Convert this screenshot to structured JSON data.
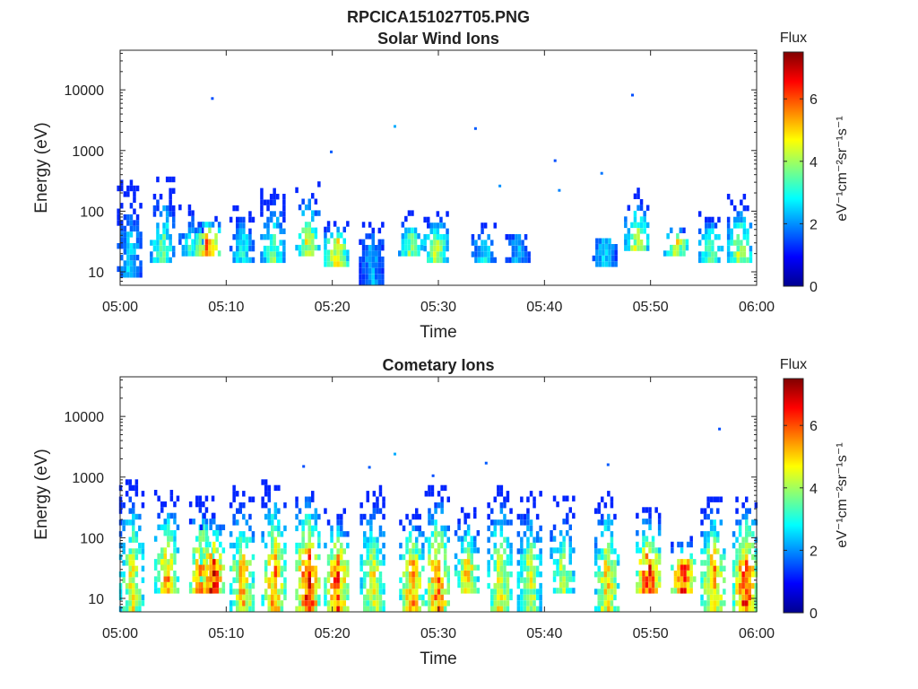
{
  "figure": {
    "title": "RPCICA151027T05.PNG"
  },
  "chart_data": [
    {
      "type": "heatmap",
      "title": "Solar Wind Ions",
      "xlabel": "Time",
      "ylabel": "Energy (eV)",
      "y_scale": "log",
      "ylim": [
        6,
        45000
      ],
      "xlim": [
        "05:00",
        "06:00"
      ],
      "x_ticks": [
        "05:00",
        "05:10",
        "05:20",
        "05:30",
        "05:40",
        "05:50",
        "06:00"
      ],
      "y_ticks": [
        {
          "value": 10,
          "label": "10"
        },
        {
          "value": 100,
          "label": "100"
        },
        {
          "value": 1000,
          "label": "1000"
        },
        {
          "value": 10000,
          "label": "10000"
        }
      ],
      "colorbar": {
        "label": "Flux",
        "units": "eV⁻¹cm⁻²sr⁻¹s⁻¹",
        "range": [
          0,
          7.5
        ],
        "ticks": [
          "0",
          "2",
          "4",
          "6"
        ],
        "colormap": "jet"
      },
      "bursts": [
        {
          "t": 0.8,
          "lo": 8,
          "hi": 300,
          "peak": 2.8
        },
        {
          "t": 3.9,
          "lo": 14,
          "hi": 300,
          "peak": 4.0
        },
        {
          "t": 6.6,
          "lo": 18,
          "hi": 120,
          "peak": 3.5
        },
        {
          "t": 8.2,
          "lo": 18,
          "hi": 80,
          "peak": 6.4
        },
        {
          "t": 11.4,
          "lo": 14,
          "hi": 110,
          "peak": 3.2
        },
        {
          "t": 14.3,
          "lo": 14,
          "hi": 230,
          "peak": 4.0
        },
        {
          "t": 17.6,
          "lo": 18,
          "hi": 250,
          "peak": 5.0
        },
        {
          "t": 20.3,
          "lo": 12,
          "hi": 60,
          "peak": 5.0
        },
        {
          "t": 23.6,
          "lo": 6,
          "hi": 55,
          "peak": 2.5
        },
        {
          "t": 27.3,
          "lo": 18,
          "hi": 90,
          "peak": 4.2
        },
        {
          "t": 29.7,
          "lo": 14,
          "hi": 90,
          "peak": 4.5
        },
        {
          "t": 34.2,
          "lo": 14,
          "hi": 60,
          "peak": 3.0
        },
        {
          "t": 37.4,
          "lo": 14,
          "hi": 35,
          "peak": 2.6
        },
        {
          "t": 45.6,
          "lo": 12,
          "hi": 35,
          "peak": 2.8
        },
        {
          "t": 48.6,
          "lo": 22,
          "hi": 200,
          "peak": 4.8
        },
        {
          "t": 52.3,
          "lo": 18,
          "hi": 45,
          "peak": 5.0
        },
        {
          "t": 55.6,
          "lo": 14,
          "hi": 90,
          "peak": 4.0
        },
        {
          "t": 58.3,
          "lo": 14,
          "hi": 160,
          "peak": 4.6
        }
      ],
      "isolated_points": [
        {
          "t": 8.7,
          "e": 7200,
          "flux": 1.5
        },
        {
          "t": 48.3,
          "e": 8200,
          "flux": 1.5
        },
        {
          "t": 25.9,
          "e": 2500,
          "flux": 2.2
        },
        {
          "t": 33.5,
          "e": 2300,
          "flux": 1.6
        },
        {
          "t": 19.9,
          "e": 950,
          "flux": 1.6
        },
        {
          "t": 41.0,
          "e": 680,
          "flux": 1.5
        },
        {
          "t": 45.4,
          "e": 420,
          "flux": 1.8
        },
        {
          "t": 41.4,
          "e": 220,
          "flux": 1.9
        },
        {
          "t": 35.8,
          "e": 260,
          "flux": 2.0
        }
      ]
    },
    {
      "type": "heatmap",
      "title": "Cometary Ions",
      "xlabel": "Time",
      "ylabel": "Energy (eV)",
      "y_scale": "log",
      "ylim": [
        6,
        45000
      ],
      "xlim": [
        "05:00",
        "06:00"
      ],
      "x_ticks": [
        "05:00",
        "05:10",
        "05:20",
        "05:30",
        "05:40",
        "05:50",
        "06:00"
      ],
      "y_ticks": [
        {
          "value": 10,
          "label": "10"
        },
        {
          "value": 100,
          "label": "100"
        },
        {
          "value": 1000,
          "label": "1000"
        },
        {
          "value": 10000,
          "label": "10000"
        }
      ],
      "colorbar": {
        "label": "Flux",
        "units": "eV⁻¹cm⁻²sr⁻¹s⁻¹",
        "range": [
          0,
          7.5
        ],
        "ticks": [
          "0",
          "2",
          "4",
          "6"
        ],
        "colormap": "jet"
      },
      "bursts": [
        {
          "t": 1.0,
          "lo": 6,
          "hi": 800,
          "peak": 5.0
        },
        {
          "t": 4.3,
          "lo": 12,
          "hi": 550,
          "peak": 5.8
        },
        {
          "t": 7.6,
          "lo": 12,
          "hi": 400,
          "peak": 6.5
        },
        {
          "t": 8.6,
          "lo": 12,
          "hi": 250,
          "peak": 7.2
        },
        {
          "t": 11.4,
          "lo": 6,
          "hi": 600,
          "peak": 5.6
        },
        {
          "t": 14.4,
          "lo": 6,
          "hi": 900,
          "peak": 6.0
        },
        {
          "t": 17.6,
          "lo": 6,
          "hi": 700,
          "peak": 7.0
        },
        {
          "t": 20.3,
          "lo": 6,
          "hi": 250,
          "peak": 6.6
        },
        {
          "t": 23.7,
          "lo": 6,
          "hi": 650,
          "peak": 5.0
        },
        {
          "t": 27.4,
          "lo": 6,
          "hi": 250,
          "peak": 6.0
        },
        {
          "t": 29.8,
          "lo": 6,
          "hi": 650,
          "peak": 6.2
        },
        {
          "t": 32.6,
          "lo": 12,
          "hi": 300,
          "peak": 5.4
        },
        {
          "t": 35.7,
          "lo": 6,
          "hi": 650,
          "peak": 5.2
        },
        {
          "t": 38.5,
          "lo": 6,
          "hi": 500,
          "peak": 4.8
        },
        {
          "t": 41.6,
          "lo": 12,
          "hi": 400,
          "peak": 4.6
        },
        {
          "t": 45.8,
          "lo": 6,
          "hi": 500,
          "peak": 5.4
        },
        {
          "t": 49.7,
          "lo": 12,
          "hi": 300,
          "peak": 7.0
        },
        {
          "t": 53.0,
          "lo": 12,
          "hi": 90,
          "peak": 7.0
        },
        {
          "t": 55.8,
          "lo": 6,
          "hi": 450,
          "peak": 6.0
        },
        {
          "t": 58.8,
          "lo": 6,
          "hi": 450,
          "peak": 6.8
        }
      ],
      "isolated_points": [
        {
          "t": 56.5,
          "e": 6200,
          "flux": 1.5
        },
        {
          "t": 25.9,
          "e": 2400,
          "flux": 2.2
        },
        {
          "t": 34.5,
          "e": 1700,
          "flux": 1.6
        },
        {
          "t": 46.0,
          "e": 1600,
          "flux": 1.6
        },
        {
          "t": 17.3,
          "e": 1500,
          "flux": 1.5
        },
        {
          "t": 23.5,
          "e": 1450,
          "flux": 1.6
        },
        {
          "t": 29.5,
          "e": 1050,
          "flux": 1.5
        }
      ]
    }
  ]
}
